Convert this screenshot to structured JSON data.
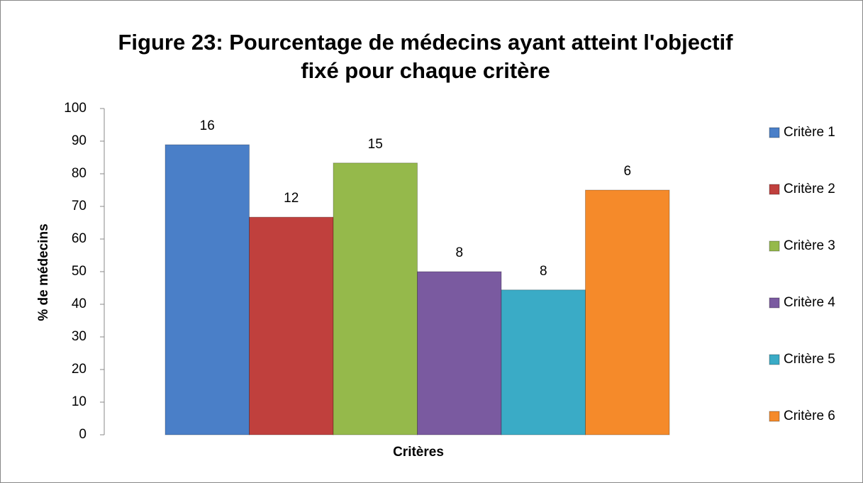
{
  "chart_data": {
    "type": "bar",
    "title": "Figure 23: Pourcentage de médecins ayant atteint l'objectif",
    "subtitle": "fixé pour chaque critère",
    "x_label": "Critères",
    "y_label": "% de médecins",
    "series": [
      {
        "name": "Critère 1",
        "color": "#4a7fc8",
        "values": [
          88.9
        ],
        "counts": [
          16
        ]
      },
      {
        "name": "Critère 2",
        "color": "#c0403d",
        "values": [
          66.7
        ],
        "counts": [
          12
        ]
      },
      {
        "name": "Critère 3",
        "color": "#95b94b",
        "values": [
          83.3
        ],
        "counts": [
          15
        ]
      },
      {
        "name": "Critère 4",
        "color": "#7a5aa0",
        "values": [
          50
        ],
        "counts": [
          8
        ]
      },
      {
        "name": "Critère 5",
        "color": "#3aabc6",
        "values": [
          44.4
        ],
        "counts": [
          8
        ]
      },
      {
        "name": "Critère 6",
        "color": "#f58a2a",
        "values": [
          75
        ],
        "counts": [
          6
        ]
      }
    ],
    "ylim": [
      0,
      100
    ],
    "yticks": [
      0,
      10,
      20,
      30,
      40,
      50,
      60,
      70,
      80,
      90,
      100
    ],
    "grid": false,
    "legend": "right"
  }
}
